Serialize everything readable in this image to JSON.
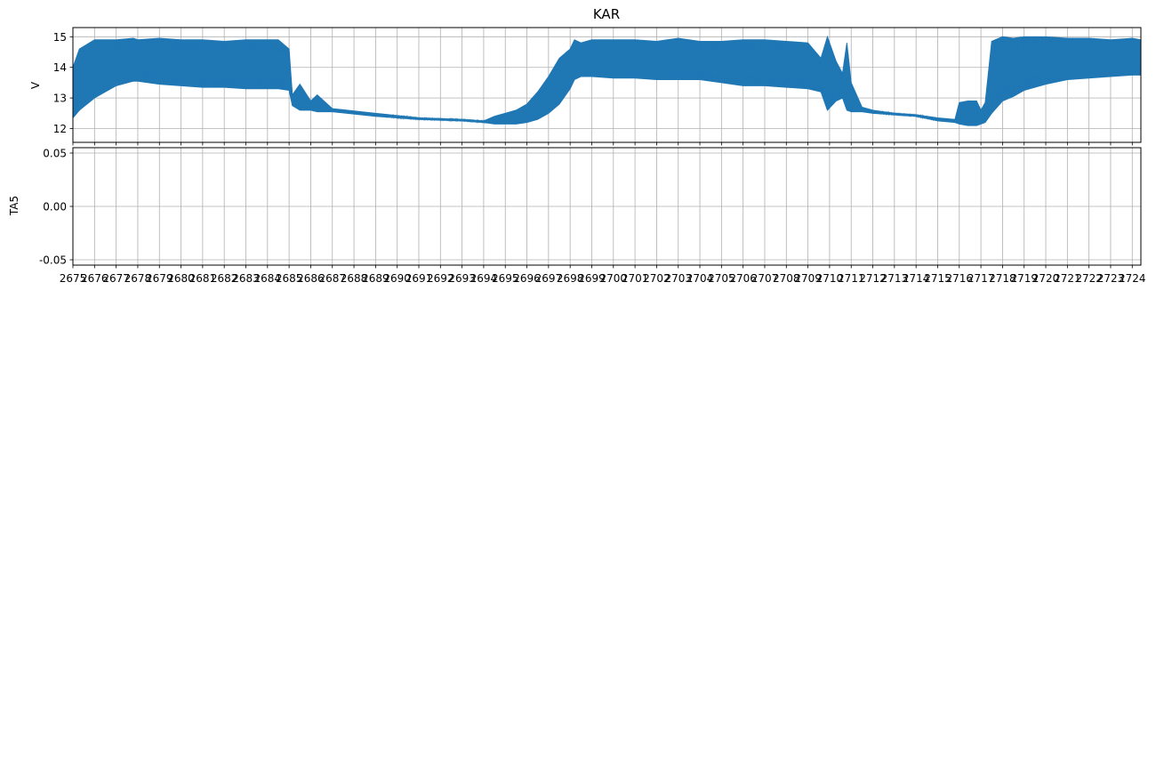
{
  "chart_data": [
    {
      "type": "line",
      "title": "KAR",
      "xlabel": "",
      "ylabel": "V",
      "xlim": [
        2675,
        2724.4
      ],
      "ylim": [
        11.55,
        15.3
      ],
      "yticks": [
        12,
        13,
        14,
        15
      ],
      "grid": true,
      "series": [
        {
          "color": "#1f77b4",
          "envelope": {
            "x": [
              2675.0,
              2675.3,
              2676.0,
              2677.0,
              2677.8,
              2678.0,
              2679.0,
              2680.0,
              2681.0,
              2682.0,
              2683.0,
              2684.5,
              2685.0,
              2685.15,
              2685.5,
              2686.0,
              2686.3,
              2687.0,
              2689.0,
              2691.0,
              2693.0,
              2694.0,
              2694.5,
              2695.0,
              2695.5,
              2696.0,
              2696.5,
              2697.0,
              2697.5,
              2698.0,
              2698.2,
              2698.5,
              2699.0,
              2700.0,
              2701.0,
              2702.0,
              2703.0,
              2704.0,
              2705.0,
              2706.0,
              2707.0,
              2708.0,
              2709.0,
              2709.6,
              2709.9,
              2710.3,
              2710.6,
              2710.8,
              2711.0,
              2711.5,
              2712.0,
              2713.0,
              2714.0,
              2715.0,
              2715.8,
              2716.0,
              2716.4,
              2716.8,
              2717.0,
              2717.2,
              2717.5,
              2718.0,
              2718.5,
              2719.0,
              2720.0,
              2721.0,
              2722.0,
              2723.0,
              2724.0,
              2724.4
            ],
            "upper": [
              14.0,
              14.6,
              14.9,
              14.9,
              14.95,
              14.9,
              14.95,
              14.9,
              14.9,
              14.85,
              14.9,
              14.9,
              14.6,
              13.1,
              13.45,
              12.9,
              13.1,
              12.65,
              12.5,
              12.35,
              12.3,
              12.25,
              12.4,
              12.5,
              12.6,
              12.8,
              13.2,
              13.7,
              14.3,
              14.6,
              14.9,
              14.8,
              14.9,
              14.9,
              14.9,
              14.85,
              14.95,
              14.85,
              14.85,
              14.9,
              14.9,
              14.85,
              14.8,
              14.3,
              15.0,
              14.2,
              13.8,
              14.8,
              13.5,
              12.7,
              12.6,
              12.5,
              12.45,
              12.35,
              12.3,
              12.85,
              12.9,
              12.9,
              12.6,
              12.85,
              14.85,
              15.0,
              14.95,
              15.0,
              15.0,
              14.95,
              14.95,
              14.9,
              14.95,
              14.9
            ],
            "lower": [
              12.35,
              12.6,
              13.0,
              13.4,
              13.55,
              13.55,
              13.45,
              13.4,
              13.35,
              13.35,
              13.3,
              13.3,
              13.25,
              12.75,
              12.6,
              12.6,
              12.55,
              12.55,
              12.4,
              12.3,
              12.25,
              12.2,
              12.15,
              12.15,
              12.15,
              12.2,
              12.3,
              12.5,
              12.8,
              13.3,
              13.6,
              13.7,
              13.7,
              13.65,
              13.65,
              13.6,
              13.6,
              13.6,
              13.5,
              13.4,
              13.4,
              13.35,
              13.3,
              13.2,
              12.6,
              12.9,
              13.0,
              12.6,
              12.55,
              12.55,
              12.5,
              12.45,
              12.4,
              12.25,
              12.2,
              12.15,
              12.1,
              12.1,
              12.15,
              12.2,
              12.5,
              12.9,
              13.05,
              13.25,
              13.45,
              13.6,
              13.65,
              13.7,
              13.75,
              13.75
            ]
          }
        }
      ]
    },
    {
      "type": "line",
      "title": "",
      "xlabel": "",
      "ylabel": "TA5",
      "xlim": [
        2675,
        2724.4
      ],
      "ylim": [
        -0.055,
        0.055
      ],
      "yticks": [
        "-0.05",
        "0.00",
        "0.05"
      ],
      "grid": true,
      "series": []
    }
  ],
  "xaxis": {
    "start": 2675,
    "end": 2724,
    "tick_labels": [
      "2675",
      "2676",
      "2677",
      "2678",
      "2679",
      "2680",
      "2681",
      "2682",
      "2683",
      "2684",
      "2685",
      "2686",
      "2687",
      "2688",
      "2689",
      "2690",
      "2691",
      "2692",
      "2693",
      "2694",
      "2695",
      "2696",
      "2697",
      "2698",
      "2699",
      "2700",
      "2701",
      "2702",
      "2703",
      "2704",
      "2705",
      "2706",
      "2707",
      "2708",
      "2709",
      "2710",
      "2711",
      "2712",
      "2713",
      "2714",
      "2715",
      "2716",
      "2717",
      "2718",
      "2719",
      "2720",
      "2721",
      "2722",
      "2723",
      "2724"
    ]
  }
}
